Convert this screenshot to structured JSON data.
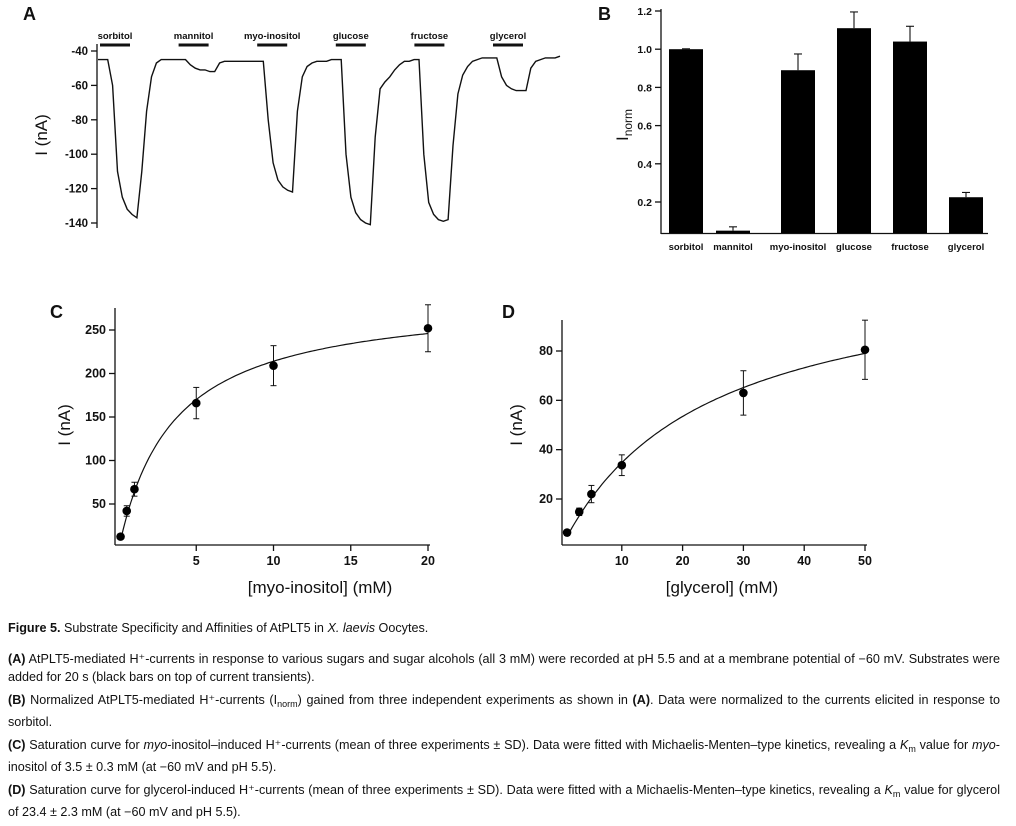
{
  "panel_labels": {
    "a": "A",
    "b": "B",
    "c": "C",
    "d": "D"
  },
  "chart_data": [
    {
      "panel": "A",
      "type": "line",
      "ylabel": "I (nA)",
      "ylim": [
        -140,
        -40
      ],
      "yticks": [
        "-40",
        "-60",
        "-80",
        "-100",
        "-120",
        "-140"
      ],
      "ytick_values": [
        -40,
        -60,
        -80,
        -100,
        -120,
        -140
      ],
      "stimuli": [
        "sorbitol",
        "mannitol",
        "myo-inositol",
        "glucose",
        "fructose",
        "glycerol"
      ],
      "trace": [
        -45,
        -45,
        -45,
        -60,
        -110,
        -125,
        -132,
        -135,
        -137,
        -110,
        -75,
        -55,
        -47,
        -45,
        -45,
        -45,
        -45,
        -45,
        -45,
        -48,
        -50,
        -51,
        -51,
        -52,
        -52,
        -47,
        -46,
        -46,
        -46,
        -46,
        -46,
        -46,
        -46,
        -46,
        -46,
        -80,
        -105,
        -115,
        -119,
        -121,
        -122,
        -75,
        -55,
        -49,
        -47,
        -46,
        -46,
        -46,
        -45,
        -45,
        -45,
        -100,
        -125,
        -134,
        -138,
        -140,
        -141,
        -90,
        -62,
        -58,
        -55,
        -51,
        -48,
        -46,
        -46,
        -45,
        -45,
        -100,
        -128,
        -135,
        -138,
        -139,
        -138,
        -95,
        -65,
        -54,
        -49,
        -46,
        -45,
        -44,
        -44,
        -44,
        -44,
        -55,
        -60,
        -62,
        -63,
        -63,
        -63,
        -50,
        -46,
        -45,
        -44,
        -44,
        -44,
        -43
      ]
    },
    {
      "panel": "B",
      "type": "bar",
      "ylabel": "I",
      "ylabel_sub": "norm",
      "ylim": [
        0.035,
        1.2
      ],
      "yticks": [
        "1.2",
        "1.0",
        "0.8",
        "0.6",
        "0.4",
        "0.2"
      ],
      "ytick_values": [
        1.2,
        1.0,
        0.8,
        0.6,
        0.4,
        0.2
      ],
      "categories": [
        "sorbitol",
        "mannitol",
        "myo-inositol",
        "glucose",
        "fructose",
        "glycerol"
      ],
      "values": [
        1.0,
        0.05,
        0.89,
        1.11,
        1.04,
        0.225
      ],
      "errors": [
        0.002,
        0.02,
        0.085,
        0.085,
        0.08,
        0.025
      ]
    },
    {
      "panel": "C",
      "type": "scatter",
      "xlabel": "[myo-inositol] (mM)",
      "ylabel": "I (nA)",
      "xlim": [
        -0.25,
        20
      ],
      "ylim": [
        3,
        275
      ],
      "xticks": [
        "5",
        "10",
        "15",
        "20"
      ],
      "xtick_values": [
        5,
        10,
        15,
        20
      ],
      "yticks": [
        "250",
        "200",
        "150",
        "100",
        "50"
      ],
      "ytick_values": [
        250,
        200,
        150,
        100,
        50
      ],
      "x": [
        0.1,
        0.5,
        1,
        5,
        10,
        20
      ],
      "y": [
        12.5,
        42,
        67,
        166,
        209,
        252
      ],
      "errors": [
        2,
        6,
        8,
        18,
        23,
        27
      ],
      "fit": {
        "type": "michaelis-menten",
        "Km": 3.5,
        "Vmax": 289
      }
    },
    {
      "panel": "D",
      "type": "scatter",
      "xlabel": "[glycerol] (mM)",
      "ylabel": "I (nA)",
      "xlim": [
        0,
        50
      ],
      "ylim": [
        1.4,
        93
      ],
      "xticks": [
        "10",
        "20",
        "30",
        "40",
        "50"
      ],
      "xtick_values": [
        10,
        20,
        30,
        40,
        50
      ],
      "yticks": [
        "80",
        "60",
        "40",
        "20"
      ],
      "ytick_values": [
        80,
        60,
        40,
        20
      ],
      "x": [
        1,
        3,
        5,
        10,
        30,
        50
      ],
      "y": [
        6.4,
        14.8,
        22,
        33.7,
        63,
        80.5
      ],
      "errors": [
        0.8,
        1.5,
        3.5,
        4.2,
        9,
        12
      ],
      "fit": {
        "type": "michaelis-menten",
        "Km": 23.4,
        "Vmax": 116
      }
    }
  ],
  "caption": {
    "title": [
      {
        "t": "Figure 5.",
        "s": "b"
      },
      {
        "t": " Substrate Specificity and Affinities of AtPLT5 in "
      },
      {
        "t": "X. laevis",
        "s": "i"
      },
      {
        "t": " Oocytes."
      }
    ],
    "paragraphs": [
      [
        {
          "t": "(A)",
          "s": "b"
        },
        {
          "t": " AtPLT5-mediated H⁺-currents in response to various sugars and sugar alcohols (all 3 mM) were recorded at pH 5.5 and at a membrane potential of −60 mV. Substrates were added for 20 s (black bars on top of current transients)."
        }
      ],
      [
        {
          "t": "(B)",
          "s": "b"
        },
        {
          "t": " Normalized AtPLT5-mediated H⁺-currents (I"
        },
        {
          "t": "norm",
          "s": "sub"
        },
        {
          "t": ") gained from three independent experiments as shown in "
        },
        {
          "t": "(A)",
          "s": "b"
        },
        {
          "t": ". Data were normalized to the currents elicited in response to sorbitol."
        }
      ],
      [
        {
          "t": "(C)",
          "s": "b"
        },
        {
          "t": " Saturation curve for "
        },
        {
          "t": "myo",
          "s": "i"
        },
        {
          "t": "-inositol–induced H⁺-currents (mean of three experiments ± SD). Data were fitted with Michaelis-Menten–type kinetics, revealing a "
        },
        {
          "t": "K",
          "s": "i"
        },
        {
          "t": "m",
          "s": "sub"
        },
        {
          "t": " value for "
        },
        {
          "t": "myo",
          "s": "i"
        },
        {
          "t": "-inositol of 3.5 ± 0.3 mM (at −60 mV and pH 5.5)."
        }
      ],
      [
        {
          "t": "(D)",
          "s": "b"
        },
        {
          "t": " Saturation curve for glycerol-induced H⁺-currents (mean of three experiments ± SD). Data were fitted with a Michaelis-Menten–type kinetics, revealing a "
        },
        {
          "t": "K",
          "s": "i"
        },
        {
          "t": "m",
          "s": "sub"
        },
        {
          "t": " value for glycerol of 23.4 ± 2.3 mM (at −60 mV and pH 5.5)."
        }
      ]
    ]
  }
}
